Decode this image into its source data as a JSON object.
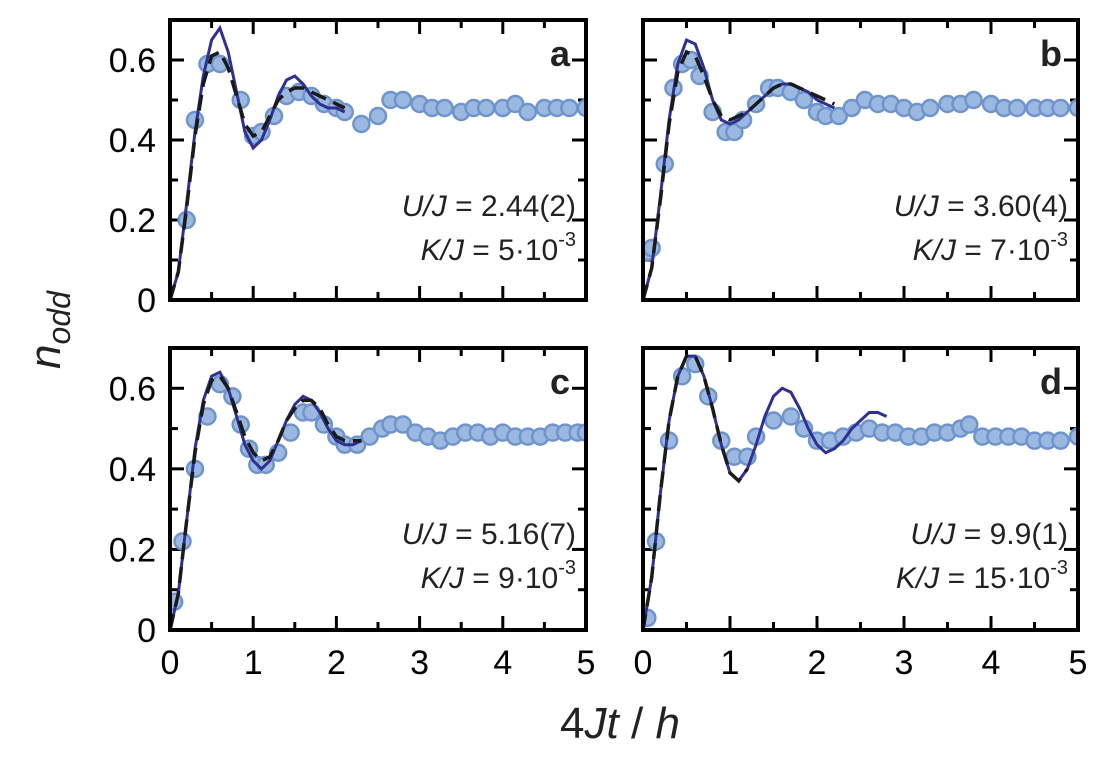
{
  "chart_data": {
    "type": "scatter",
    "xlabel_parts": {
      "p1": "4",
      "p2": "Jt",
      "p3": " / ",
      "p4": "h"
    },
    "ylabel_parts": {
      "base": "n",
      "sub": "odd"
    },
    "xlim": [
      0,
      5
    ],
    "ylim": [
      0,
      0.7
    ],
    "x_tick_labels": [
      "0",
      "1",
      "2",
      "3",
      "4",
      "5"
    ],
    "y_tick_labels": [
      "0",
      "0.2",
      "0.4",
      "0.6"
    ],
    "panels": [
      {
        "label": "a",
        "annotation": {
          "u_prefix": "U",
          "u_j": "/J",
          "u_value": " = 2.44(2)",
          "k_prefix": "K",
          "k_j": "/J",
          "k_value": " = 5·10",
          "k_exp": "-3"
        },
        "data_points": {
          "x": [
            0.2,
            0.3,
            0.45,
            0.6,
            0.85,
            1.0,
            1.1,
            1.25,
            1.4,
            1.55,
            1.7,
            1.85,
            2.0,
            2.1,
            2.3,
            2.5,
            2.65,
            2.8,
            3.0,
            3.15,
            3.3,
            3.5,
            3.65,
            3.8,
            4.0,
            4.15,
            4.3,
            4.5,
            4.65,
            4.8,
            5.0
          ],
          "y": [
            0.2,
            0.45,
            0.59,
            0.59,
            0.5,
            0.41,
            0.42,
            0.46,
            0.51,
            0.52,
            0.51,
            0.49,
            0.48,
            0.47,
            0.44,
            0.46,
            0.5,
            0.5,
            0.49,
            0.48,
            0.48,
            0.47,
            0.48,
            0.48,
            0.48,
            0.49,
            0.47,
            0.48,
            0.48,
            0.48,
            0.48
          ]
        },
        "theory_solid": {
          "x": [
            0,
            0.1,
            0.2,
            0.3,
            0.4,
            0.5,
            0.6,
            0.7,
            0.8,
            0.9,
            1.0,
            1.1,
            1.2,
            1.3,
            1.4,
            1.5,
            1.6,
            1.7,
            1.8,
            1.9,
            2.0,
            2.1
          ],
          "y": [
            0,
            0.07,
            0.24,
            0.42,
            0.56,
            0.65,
            0.68,
            0.62,
            0.52,
            0.42,
            0.38,
            0.4,
            0.45,
            0.51,
            0.55,
            0.56,
            0.54,
            0.51,
            0.49,
            0.48,
            0.48,
            0.47
          ]
        },
        "theory_dashed": {
          "x": [
            0,
            0.1,
            0.2,
            0.3,
            0.4,
            0.5,
            0.6,
            0.7,
            0.8,
            0.9,
            1.0,
            1.1,
            1.2,
            1.3,
            1.4,
            1.5,
            1.6,
            1.7,
            1.8,
            1.9,
            2.0,
            2.1
          ],
          "y": [
            0,
            0.07,
            0.23,
            0.41,
            0.54,
            0.61,
            0.62,
            0.58,
            0.51,
            0.44,
            0.41,
            0.42,
            0.46,
            0.5,
            0.52,
            0.53,
            0.53,
            0.52,
            0.51,
            0.5,
            0.49,
            0.48
          ]
        }
      },
      {
        "label": "b",
        "annotation": {
          "u_prefix": "U",
          "u_j": "/J",
          "u_value": " = 3.60(4)",
          "k_prefix": "K",
          "k_j": "/J",
          "k_value": " = 7·10",
          "k_exp": "-3"
        },
        "data_points": {
          "x": [
            0.05,
            0.1,
            0.25,
            0.35,
            0.45,
            0.55,
            0.65,
            0.8,
            0.95,
            1.05,
            1.15,
            1.3,
            1.45,
            1.55,
            1.7,
            1.85,
            2.0,
            2.1,
            2.25,
            2.4,
            2.55,
            2.7,
            2.85,
            3.0,
            3.15,
            3.3,
            3.5,
            3.65,
            3.8,
            4.0,
            4.15,
            4.3,
            4.5,
            4.65,
            4.8,
            5.0
          ],
          "y": [
            0.12,
            0.13,
            0.34,
            0.53,
            0.59,
            0.6,
            0.56,
            0.47,
            0.42,
            0.42,
            0.45,
            0.49,
            0.53,
            0.53,
            0.52,
            0.5,
            0.47,
            0.46,
            0.46,
            0.48,
            0.5,
            0.49,
            0.49,
            0.48,
            0.47,
            0.48,
            0.49,
            0.49,
            0.5,
            0.49,
            0.48,
            0.48,
            0.48,
            0.48,
            0.48,
            0.48
          ]
        },
        "theory_solid": {
          "x": [
            0,
            0.1,
            0.2,
            0.3,
            0.4,
            0.5,
            0.6,
            0.7,
            0.8,
            0.9,
            1.0,
            1.1,
            1.2,
            1.3,
            1.4,
            1.5,
            1.6,
            1.7,
            1.8,
            1.9,
            2.0,
            2.1,
            2.2
          ],
          "y": [
            0,
            0.08,
            0.26,
            0.45,
            0.59,
            0.65,
            0.64,
            0.58,
            0.5,
            0.45,
            0.44,
            0.45,
            0.47,
            0.49,
            0.51,
            0.53,
            0.54,
            0.54,
            0.53,
            0.52,
            0.5,
            0.49,
            0.48
          ]
        },
        "theory_dashed": {
          "x": [
            0,
            0.1,
            0.2,
            0.3,
            0.4,
            0.5,
            0.6,
            0.7,
            0.8,
            0.9,
            1.0,
            1.1,
            1.2,
            1.3,
            1.4,
            1.5,
            1.6,
            1.7,
            1.8,
            1.9,
            2.0,
            2.1,
            2.2
          ],
          "y": [
            0,
            0.08,
            0.25,
            0.44,
            0.57,
            0.62,
            0.61,
            0.56,
            0.5,
            0.46,
            0.45,
            0.46,
            0.47,
            0.49,
            0.51,
            0.53,
            0.54,
            0.54,
            0.53,
            0.52,
            0.51,
            0.5,
            0.49
          ]
        }
      },
      {
        "label": "c",
        "annotation": {
          "u_prefix": "U",
          "u_j": "/J",
          "u_value": " = 5.16(7)",
          "k_prefix": "K",
          "k_j": "/J",
          "k_value": " = 9·10",
          "k_exp": "-3"
        },
        "data_points": {
          "x": [
            0.05,
            0.15,
            0.3,
            0.45,
            0.6,
            0.75,
            0.85,
            0.95,
            1.05,
            1.15,
            1.3,
            1.45,
            1.6,
            1.7,
            1.85,
            2.0,
            2.1,
            2.25,
            2.4,
            2.55,
            2.65,
            2.8,
            2.95,
            3.1,
            3.25,
            3.4,
            3.55,
            3.7,
            3.85,
            4.0,
            4.15,
            4.3,
            4.45,
            4.6,
            4.75,
            4.9,
            5.0
          ],
          "y": [
            0.07,
            0.22,
            0.4,
            0.53,
            0.61,
            0.58,
            0.51,
            0.45,
            0.41,
            0.41,
            0.44,
            0.49,
            0.54,
            0.54,
            0.51,
            0.48,
            0.46,
            0.46,
            0.48,
            0.5,
            0.51,
            0.51,
            0.49,
            0.48,
            0.47,
            0.48,
            0.49,
            0.49,
            0.48,
            0.49,
            0.48,
            0.48,
            0.48,
            0.49,
            0.49,
            0.49,
            0.49
          ]
        },
        "theory_solid": {
          "x": [
            0,
            0.1,
            0.2,
            0.3,
            0.4,
            0.5,
            0.6,
            0.7,
            0.8,
            0.9,
            1.0,
            1.1,
            1.2,
            1.3,
            1.4,
            1.5,
            1.6,
            1.7,
            1.8,
            1.9,
            2.0,
            2.1,
            2.2,
            2.3
          ],
          "y": [
            0,
            0.09,
            0.27,
            0.45,
            0.57,
            0.63,
            0.64,
            0.6,
            0.53,
            0.46,
            0.42,
            0.4,
            0.42,
            0.47,
            0.52,
            0.56,
            0.58,
            0.57,
            0.54,
            0.5,
            0.47,
            0.46,
            0.46,
            0.47
          ]
        },
        "theory_dashed": {
          "x": [
            0,
            0.1,
            0.2,
            0.3,
            0.4,
            0.5,
            0.6,
            0.7,
            0.8,
            0.9,
            1.0,
            1.1,
            1.2,
            1.3,
            1.4,
            1.5,
            1.6,
            1.7,
            1.8,
            1.9,
            2.0,
            2.1,
            2.2,
            2.3
          ],
          "y": [
            0,
            0.09,
            0.27,
            0.44,
            0.56,
            0.62,
            0.63,
            0.6,
            0.54,
            0.48,
            0.44,
            0.42,
            0.43,
            0.47,
            0.52,
            0.55,
            0.57,
            0.57,
            0.55,
            0.51,
            0.48,
            0.47,
            0.47,
            0.47
          ]
        }
      },
      {
        "label": "d",
        "annotation": {
          "u_prefix": "U",
          "u_j": "/J",
          "u_value": " = 9.9(1)",
          "k_prefix": "K",
          "k_j": "/J",
          "k_value": " = 15·10",
          "k_exp": "-3"
        },
        "data_points": {
          "x": [
            0.05,
            0.15,
            0.3,
            0.45,
            0.6,
            0.75,
            0.9,
            1.05,
            1.2,
            1.3,
            1.5,
            1.7,
            1.85,
            2.0,
            2.15,
            2.3,
            2.45,
            2.6,
            2.75,
            2.9,
            3.05,
            3.2,
            3.35,
            3.5,
            3.65,
            3.75,
            3.9,
            4.05,
            4.2,
            4.35,
            4.5,
            4.65,
            4.8,
            5.0
          ],
          "y": [
            0.03,
            0.22,
            0.47,
            0.63,
            0.66,
            0.58,
            0.47,
            0.43,
            0.43,
            0.48,
            0.52,
            0.53,
            0.5,
            0.47,
            0.47,
            0.48,
            0.49,
            0.5,
            0.49,
            0.49,
            0.48,
            0.48,
            0.49,
            0.49,
            0.5,
            0.51,
            0.48,
            0.48,
            0.48,
            0.48,
            0.47,
            0.47,
            0.47,
            0.48
          ]
        },
        "theory_solid": {
          "x": [
            0,
            0.1,
            0.2,
            0.3,
            0.4,
            0.5,
            0.6,
            0.7,
            0.8,
            0.9,
            1.0,
            1.1,
            1.2,
            1.3,
            1.4,
            1.5,
            1.6,
            1.7,
            1.8,
            1.9,
            2.0,
            2.1,
            2.2,
            2.3,
            2.4,
            2.5,
            2.6,
            2.7,
            2.8
          ],
          "y": [
            0,
            0.13,
            0.34,
            0.52,
            0.63,
            0.68,
            0.68,
            0.63,
            0.55,
            0.46,
            0.39,
            0.37,
            0.4,
            0.46,
            0.53,
            0.58,
            0.6,
            0.59,
            0.55,
            0.5,
            0.46,
            0.44,
            0.45,
            0.47,
            0.5,
            0.52,
            0.54,
            0.54,
            0.53
          ]
        },
        "theory_dashed": {
          "x": [
            0,
            0.1,
            0.2,
            0.3,
            0.4,
            0.5,
            0.6,
            0.7,
            0.8,
            0.9,
            1.0,
            1.1,
            1.2
          ],
          "y": [
            0,
            0.13,
            0.34,
            0.52,
            0.63,
            0.68,
            0.68,
            0.63,
            0.55,
            0.46,
            0.39,
            0.37,
            0.4
          ]
        }
      }
    ]
  }
}
